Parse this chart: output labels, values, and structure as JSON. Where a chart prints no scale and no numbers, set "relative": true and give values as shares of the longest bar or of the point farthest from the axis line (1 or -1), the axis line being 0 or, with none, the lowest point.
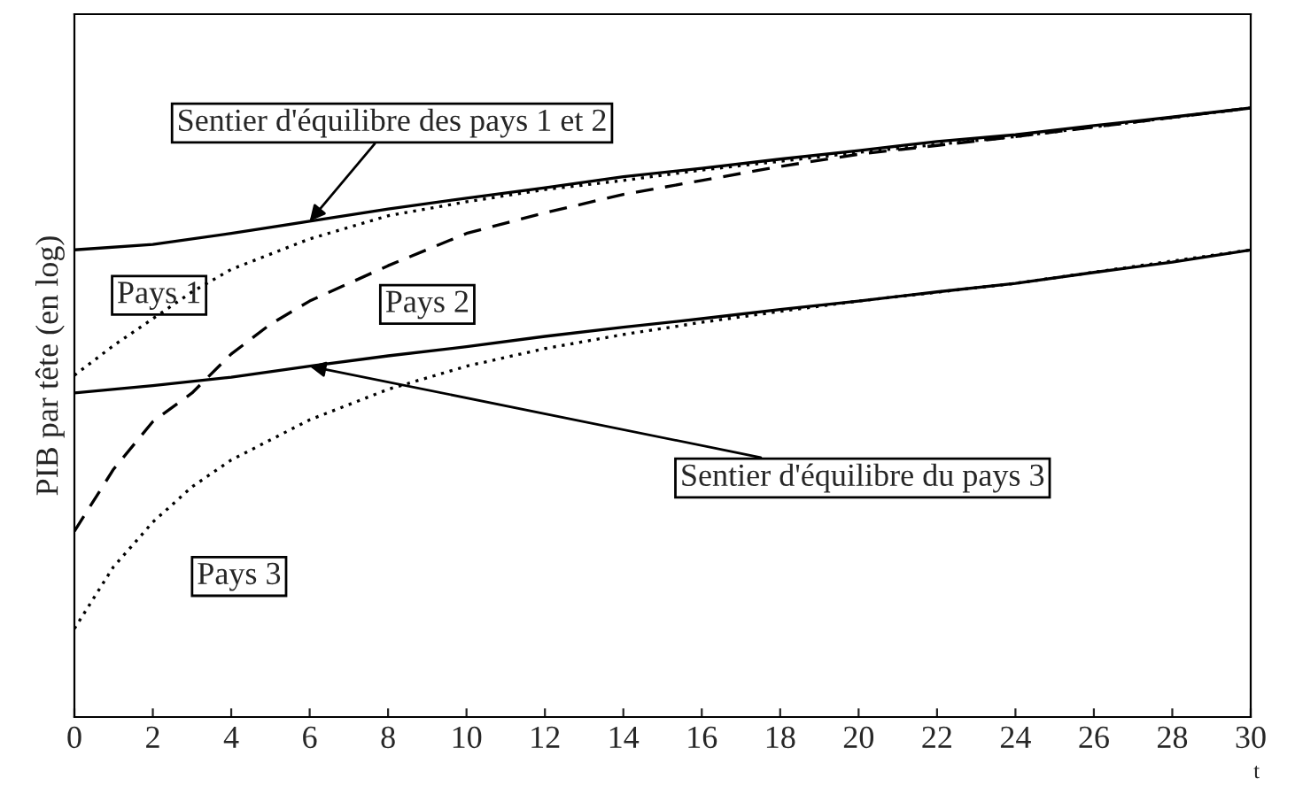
{
  "chart_data": {
    "type": "line",
    "relative": true,
    "xlabel": "t",
    "ylabel": "PIB par tête (en log)",
    "xlim": [
      0,
      30
    ],
    "xticks": [
      0,
      2,
      4,
      6,
      8,
      10,
      12,
      14,
      16,
      18,
      20,
      22,
      24,
      26,
      28,
      30
    ],
    "grid": false,
    "legend": false,
    "tick_labels": "x",
    "marker": "none",
    "series": [
      {
        "name": "Sentier d'équilibre des pays 1 et 2",
        "color": "#000000",
        "line_style": "solid",
        "x": [
          0,
          2,
          4,
          6,
          8,
          10,
          12,
          14,
          16,
          18,
          20,
          22,
          24,
          26,
          28,
          30
        ],
        "values": [
          0.767,
          0.776,
          0.794,
          0.814,
          0.834,
          0.852,
          0.869,
          0.887,
          0.901,
          0.916,
          0.93,
          0.945,
          0.956,
          0.971,
          0.985,
          1.0
        ]
      },
      {
        "name": "Pays 1",
        "color": "#000000",
        "line_style": "dotted",
        "x": [
          0,
          1,
          2,
          3,
          4,
          6,
          8,
          10,
          12,
          14,
          16,
          20,
          24,
          30
        ],
        "values": [
          0.561,
          0.61,
          0.654,
          0.698,
          0.735,
          0.785,
          0.823,
          0.846,
          0.866,
          0.881,
          0.898,
          0.927,
          0.953,
          1.0
        ]
      },
      {
        "name": "Pays 2",
        "color": "#000000",
        "line_style": "dashed",
        "x": [
          0,
          1,
          2,
          3,
          4,
          5,
          6,
          7,
          8,
          10,
          12,
          14,
          16,
          18,
          20,
          24,
          30
        ],
        "values": [
          0.305,
          0.407,
          0.485,
          0.532,
          0.596,
          0.645,
          0.683,
          0.712,
          0.741,
          0.794,
          0.828,
          0.858,
          0.881,
          0.904,
          0.924,
          0.953,
          1.0
        ]
      },
      {
        "name": "Sentier d'équilibre du pays 3",
        "color": "#000000",
        "line_style": "solid",
        "x": [
          0,
          2,
          4,
          6,
          8,
          10,
          12,
          14,
          16,
          18,
          20,
          22,
          24,
          26,
          28,
          30
        ],
        "values": [
          0.532,
          0.544,
          0.558,
          0.576,
          0.593,
          0.608,
          0.625,
          0.64,
          0.654,
          0.669,
          0.683,
          0.698,
          0.712,
          0.73,
          0.747,
          0.767
        ]
      },
      {
        "name": "Pays 3",
        "color": "#000000",
        "line_style": "dotted",
        "x": [
          0,
          1,
          2,
          3,
          4,
          6,
          8,
          10,
          12,
          14,
          16,
          18,
          20,
          24,
          30
        ],
        "values": [
          0.145,
          0.247,
          0.32,
          0.378,
          0.422,
          0.488,
          0.538,
          0.576,
          0.605,
          0.628,
          0.648,
          0.666,
          0.683,
          0.712,
          0.767
        ]
      }
    ]
  }
}
